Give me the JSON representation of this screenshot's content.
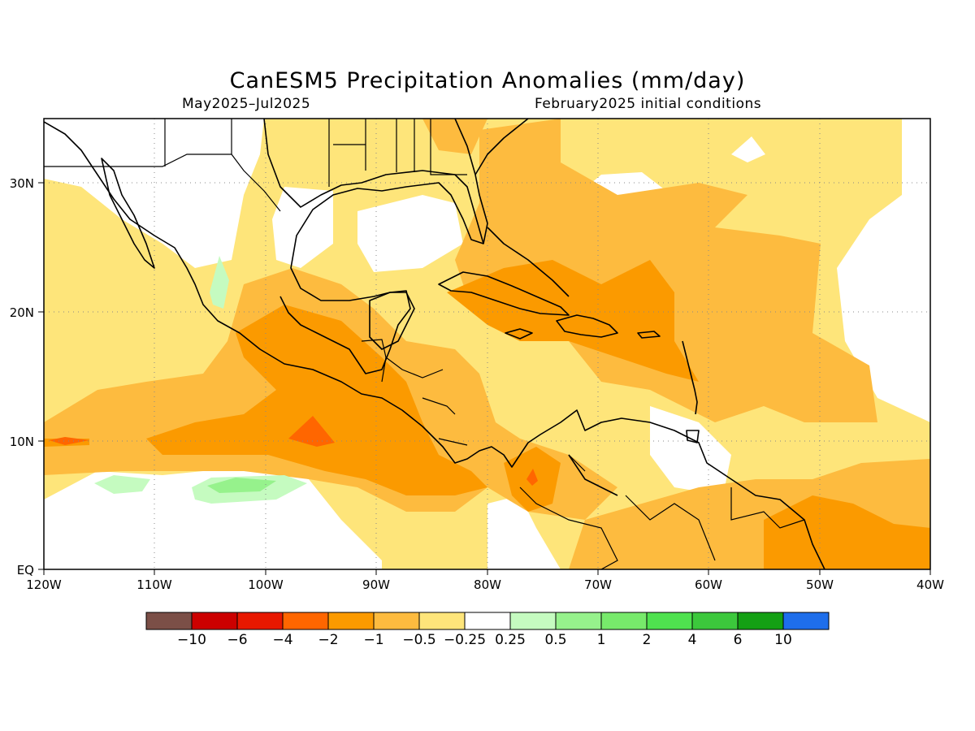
{
  "title": "CanESM5 Precipitation Anomalies (mm/day)",
  "period": "May2025–Jul2025",
  "init": "February2025 initial conditions",
  "lon_labels": [
    "120W",
    "110W",
    "100W",
    "90W",
    "80W",
    "70W",
    "60W",
    "50W",
    "40W"
  ],
  "lat_labels": [
    "30N",
    "20N",
    "10N",
    "EQ"
  ],
  "lon_range": [
    -120,
    -40
  ],
  "lat_range": [
    0,
    35
  ],
  "colorbar": {
    "colors": [
      "#7b4f47",
      "#cc0000",
      "#e81800",
      "#ff6600",
      "#fb9a00",
      "#fdbb3f",
      "#fee57a",
      "#ffffff",
      "#c5fbc0",
      "#96f28c",
      "#77ea6b",
      "#4fe24f",
      "#3cc83c",
      "#14a014",
      "#1e6eeb"
    ],
    "labels": [
      "−10",
      "−6",
      "−4",
      "−2",
      "−1",
      "−0.5",
      "−0.25",
      "0.25",
      "0.5",
      "1",
      "2",
      "4",
      "6",
      "10"
    ]
  }
}
